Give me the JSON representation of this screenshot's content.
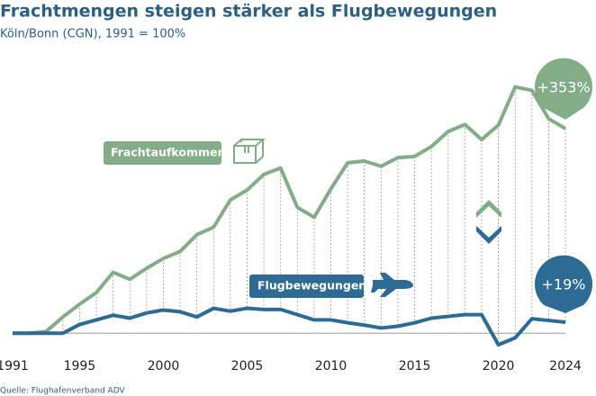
{
  "chart_data": {
    "type": "line",
    "title": "Frachtmengen steigen stärker als Flugbewegungen",
    "subtitle": "Köln/Bonn (CGN), 1991 = 100%",
    "source": "Quelle: Flughafenverband ADV",
    "x": [
      1991,
      1992,
      1993,
      1994,
      1995,
      1996,
      1997,
      1998,
      1999,
      2000,
      2001,
      2002,
      2003,
      2004,
      2005,
      2006,
      2007,
      2008,
      2009,
      2010,
      2011,
      2012,
      2013,
      2014,
      2015,
      2016,
      2017,
      2018,
      2019,
      2020,
      2021,
      2022,
      2023,
      2024
    ],
    "xlim": [
      1991,
      2024
    ],
    "xticks": [
      1991,
      1995,
      2000,
      2005,
      2010,
      2015,
      2020,
      2024
    ],
    "ylim": [
      60,
      560
    ],
    "reference_line": 100,
    "series": [
      {
        "name": "Frachtaufkommen",
        "color": "#82ad86",
        "annotation": "+353%",
        "values": [
          100,
          100,
          103,
          128,
          150,
          170,
          205,
          193,
          212,
          229,
          241,
          270,
          283,
          330,
          347,
          374,
          385,
          317,
          300,
          349,
          394,
          397,
          388,
          403,
          405,
          422,
          448,
          460,
          434,
          459,
          525,
          519,
          470,
          453
        ]
      },
      {
        "name": "Flugbewegungen",
        "color": "#2d6a94",
        "annotation": "+19%",
        "values": [
          100,
          100,
          100,
          100,
          115,
          123,
          131,
          126,
          135,
          140,
          137,
          128,
          143,
          138,
          143,
          141,
          141,
          132,
          123,
          123,
          118,
          114,
          109,
          112,
          118,
          126,
          129,
          132,
          132,
          80,
          92,
          125,
          122,
          119
        ]
      }
    ]
  }
}
